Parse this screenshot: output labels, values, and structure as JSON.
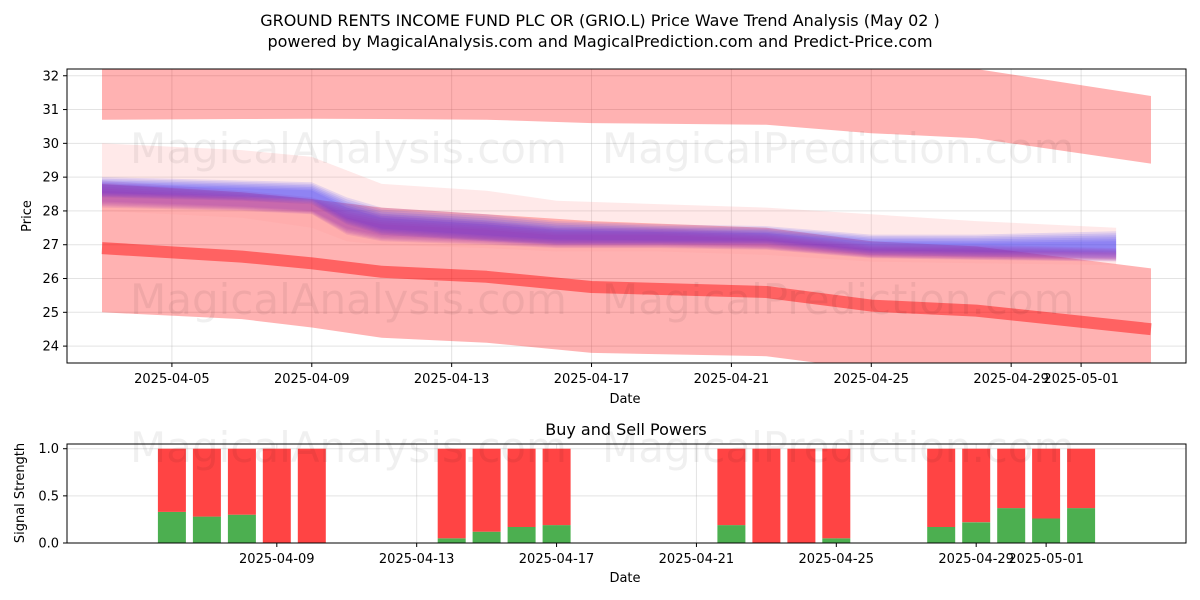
{
  "header": {
    "title_line1": "GROUND RENTS INCOME FUND PLC OR (GRIO.L) Price Wave Trend Analysis (May 02 )",
    "title_line2": "powered by MagicalAnalysis.com and MagicalPrediction.com and Predict-Price.com"
  },
  "watermarks": [
    "MagicalAnalysis.com",
    "MagicalPrediction.com"
  ],
  "colors": {
    "red_band": "#ff0000",
    "blue_wave": "#3333ff",
    "purple_wave": "#9933aa",
    "buy": "#4caf50",
    "sell": "#ff4444"
  },
  "chart_data": [
    {
      "type": "area",
      "title": "",
      "xlabel": "Date",
      "ylabel": "Price",
      "ylim": [
        23.5,
        32.2
      ],
      "xlim": [
        "2025-04-02",
        "2025-05-04"
      ],
      "y_ticks": [
        24,
        25,
        26,
        27,
        28,
        29,
        30,
        31,
        32
      ],
      "x_ticks": [
        "2025-04-05",
        "2025-04-09",
        "2025-04-13",
        "2025-04-17",
        "2025-04-21",
        "2025-04-25",
        "2025-04-29",
        "2025-05-01"
      ],
      "grid": true,
      "dates": [
        "2025-04-03",
        "2025-04-07",
        "2025-04-09",
        "2025-04-11",
        "2025-04-14",
        "2025-04-17",
        "2025-04-22",
        "2025-04-25",
        "2025-04-28",
        "2025-05-03"
      ],
      "red_upper_band": {
        "top": [
          32.2,
          32.2,
          32.2,
          32.2,
          32.2,
          32.2,
          32.2,
          32.2,
          32.2,
          31.4
        ],
        "bottom": [
          30.7,
          30.72,
          30.73,
          30.72,
          30.7,
          30.6,
          30.55,
          30.3,
          30.15,
          29.4
        ]
      },
      "red_lower_band": {
        "top": [
          28.8,
          28.55,
          28.35,
          28.1,
          27.9,
          27.7,
          27.5,
          27.1,
          26.95,
          26.3
        ],
        "bottom": [
          25.0,
          24.8,
          24.55,
          24.25,
          24.1,
          23.8,
          23.7,
          23.3,
          23.1,
          22.8
        ]
      },
      "red_trend_line": [
        26.9,
        26.65,
        26.45,
        26.2,
        26.05,
        25.75,
        25.6,
        25.2,
        25.05,
        24.5
      ],
      "wave_dates": [
        "2025-04-03",
        "2025-04-05",
        "2025-04-07",
        "2025-04-09",
        "2025-04-10",
        "2025-04-11",
        "2025-04-14",
        "2025-04-16",
        "2025-04-19",
        "2025-04-22",
        "2025-04-25",
        "2025-04-28",
        "2025-05-02"
      ],
      "blue_wave": {
        "upper": [
          29.0,
          28.95,
          28.9,
          28.85,
          28.4,
          28.1,
          27.9,
          27.7,
          27.6,
          27.55,
          27.3,
          27.3,
          27.4
        ],
        "lower": [
          28.4,
          28.35,
          28.3,
          28.2,
          27.6,
          27.3,
          27.1,
          27.0,
          27.0,
          27.0,
          26.7,
          26.65,
          26.6
        ]
      },
      "purple_wave": {
        "upper": [
          28.9,
          28.75,
          28.6,
          28.4,
          28.1,
          27.9,
          27.7,
          27.5,
          27.5,
          27.35,
          27.0,
          27.0,
          26.9
        ],
        "lower": [
          28.1,
          28.05,
          28.0,
          27.9,
          27.3,
          27.1,
          27.0,
          26.9,
          26.9,
          26.85,
          26.6,
          26.55,
          26.5
        ]
      },
      "pink_envelope": {
        "upper": [
          30.0,
          29.9,
          29.8,
          29.6,
          29.2,
          28.8,
          28.6,
          28.3,
          28.2,
          28.1,
          27.9,
          27.7,
          27.5
        ],
        "lower": [
          28.0,
          27.9,
          27.8,
          27.5,
          27.1,
          27.0,
          26.9,
          26.8,
          26.8,
          26.7,
          26.5,
          26.45,
          26.4
        ]
      }
    },
    {
      "type": "bar",
      "title": "Buy and Sell Powers",
      "xlabel": "Date",
      "ylabel": "Signal Strength",
      "ylim": [
        0,
        1.05
      ],
      "xlim": [
        "2025-04-03",
        "2025-05-05"
      ],
      "y_ticks": [
        "0.0",
        "0.5",
        "1.0"
      ],
      "x_ticks": [
        "2025-04-09",
        "2025-04-13",
        "2025-04-17",
        "2025-04-21",
        "2025-04-25",
        "2025-04-29",
        "2025-05-01"
      ],
      "categories": [
        "2025-04-06",
        "2025-04-07",
        "2025-04-08",
        "2025-04-09",
        "2025-04-10",
        "2025-04-14",
        "2025-04-15",
        "2025-04-16",
        "2025-04-17",
        "2025-04-22",
        "2025-04-23",
        "2025-04-24",
        "2025-04-25",
        "2025-04-28",
        "2025-04-29",
        "2025-04-30",
        "2025-05-01",
        "2025-05-02"
      ],
      "series": [
        {
          "name": "",
          "values": [
            0.33,
            0.28,
            0.3,
            0.0,
            0.0,
            0.05,
            0.12,
            0.17,
            0.19,
            0.19,
            0.0,
            0.0,
            0.05,
            0.17,
            0.22,
            0.37,
            0.26,
            0.37
          ]
        },
        {
          "name": "",
          "values": [
            0.67,
            0.72,
            0.7,
            1.0,
            1.0,
            0.95,
            0.88,
            0.83,
            0.81,
            0.81,
            1.0,
            1.0,
            0.95,
            0.83,
            0.78,
            0.63,
            0.74,
            0.63
          ]
        }
      ]
    }
  ]
}
